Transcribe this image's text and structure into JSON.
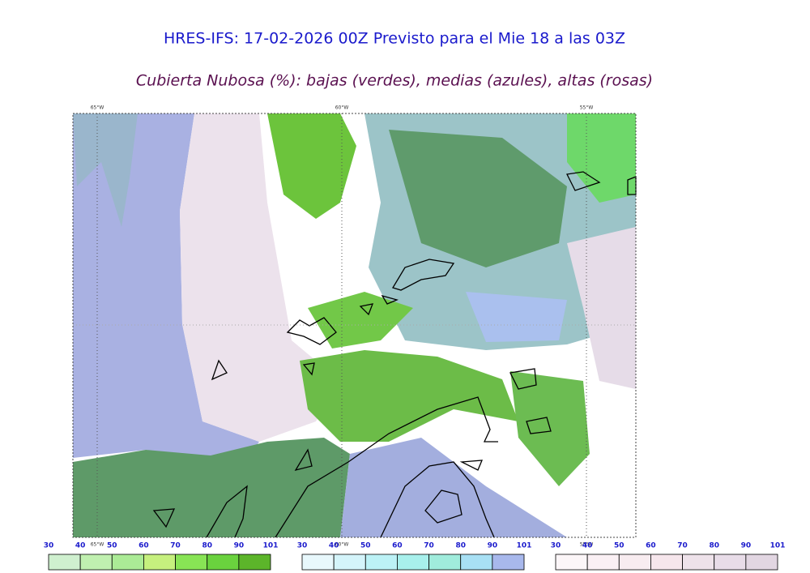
{
  "header": {
    "title": "HRES-IFS: 17-02-2026 00Z Previsto para el Mie 18 a las 03Z",
    "subtitle": "Cubierta Nubosa (%): bajas (verdes), medias (azules), altas (rosas)"
  },
  "map": {
    "longitude_labels": [
      "65°W",
      "60°W",
      "55°W"
    ]
  },
  "legends": [
    {
      "ticks": [
        30,
        40,
        50,
        60,
        70,
        80,
        90,
        101
      ],
      "colors": [
        "#cff0cf",
        "#c0f0b0",
        "#abeb96",
        "#c6f07e",
        "#88e455",
        "#6ad23e",
        "#5cb52a"
      ]
    },
    {
      "ticks": [
        30,
        40,
        50,
        60,
        70,
        80,
        90,
        101
      ],
      "colors": [
        "#e8f8fc",
        "#d4f4fa",
        "#bcf2f6",
        "#a8f0ec",
        "#a0ecdc",
        "#a8e0f4",
        "#a8b8ec"
      ]
    },
    {
      "ticks": [
        30,
        40,
        50,
        60,
        70,
        80,
        90,
        101
      ],
      "colors": [
        "#fcf6f8",
        "#faf0f4",
        "#f8ecf0",
        "#f6e6ec",
        "#eee2ea",
        "#e8dce8",
        "#e2d6e2"
      ]
    }
  ]
}
